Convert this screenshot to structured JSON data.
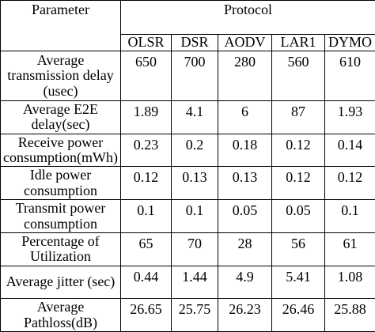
{
  "table": {
    "parameter_header": "Parameter",
    "protocol_header": "Protocol",
    "protocols": [
      "OLSR",
      "DSR",
      "AODV",
      "LAR1",
      "DYMO"
    ],
    "rows": [
      {
        "parameter": "Average transmission delay (usec)",
        "values": [
          "650",
          "700",
          "280",
          "560",
          "610"
        ]
      },
      {
        "parameter": "Average E2E delay(sec)",
        "values": [
          "1.89",
          "4.1",
          "6",
          "87",
          "1.93"
        ]
      },
      {
        "parameter": "Receive power consumption(mWh)",
        "values": [
          "0.23",
          "0.2",
          "0.18",
          "0.12",
          "0.14"
        ]
      },
      {
        "parameter": "Idle power consumption",
        "values": [
          "0.12",
          "0.13",
          "0.13",
          "0.12",
          "0.12"
        ]
      },
      {
        "parameter": "Transmit power consumption",
        "values": [
          "0.1",
          "0.1",
          "0.05",
          "0.05",
          "0.1"
        ]
      },
      {
        "parameter": "Percentage of Utilization",
        "values": [
          "65",
          "70",
          "28",
          "56",
          "61"
        ]
      },
      {
        "parameter": "Average jitter (sec)",
        "values": [
          "0.44",
          "1.44",
          "4.9",
          "5.41",
          "1.08"
        ]
      },
      {
        "parameter": "Average Pathloss(dB)",
        "values": [
          "26.65",
          "25.75",
          "26.23",
          "26.46",
          "25.88"
        ]
      }
    ]
  }
}
